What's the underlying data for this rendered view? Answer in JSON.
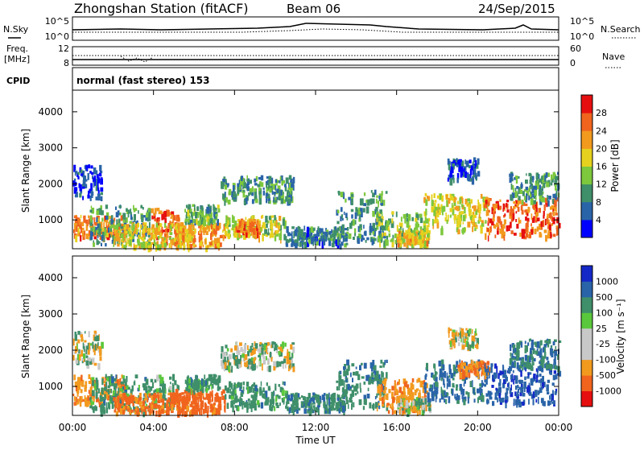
{
  "header": {
    "station": "Zhongshan Station (fitACF)",
    "beam": "Beam 06",
    "date": "24/Sep/2015"
  },
  "noise_panel": {
    "left_label": "N.Sky",
    "left_ticks": [
      "10^5",
      "10^0"
    ],
    "right_label": "N.Search",
    "right_ticks": [
      "10^5",
      "10^0"
    ]
  },
  "freq_panel": {
    "left_label_1": "Freq.",
    "left_label_2": "[MHz]",
    "left_ticks": [
      "12",
      "8"
    ],
    "right_label": "Nave",
    "right_ticks": [
      "60",
      "0"
    ]
  },
  "cpid": {
    "label": "CPID",
    "mode_text": "normal (fast stereo) 153"
  },
  "x_axis": {
    "ticks": [
      "00:00",
      "04:00",
      "08:00",
      "12:00",
      "16:00",
      "20:00",
      "00:00"
    ],
    "label": "Time UT"
  },
  "colors": {
    "power_scale": [
      "#0000ff",
      "#2a64a8",
      "#3f8f6a",
      "#7dc83d",
      "#e6d21e",
      "#f29a1e",
      "#f0641e",
      "#e60f0f"
    ],
    "velocity_scale": [
      "#e60f0f",
      "#f0641e",
      "#f29a1e",
      "#c8c8c8",
      "#c8c8c8",
      "#5ac83c",
      "#3f8f6a",
      "#2a64a8",
      "#1428c8"
    ]
  },
  "chart_data": [
    {
      "type": "heatmap",
      "name": "power",
      "ylabel": "Slant Range [km]",
      "xlabel": "Time UT",
      "xlim": [
        0,
        24
      ],
      "ylim": [
        200,
        4600
      ],
      "yticks": [
        "4000",
        "3000",
        "2000",
        "1000"
      ],
      "colorbar_label": "Power [dB]",
      "colorbar_ticks": [
        "28",
        "24",
        "20",
        "16",
        "12",
        "8",
        "4"
      ],
      "colorbar_range": [
        0,
        32
      ],
      "regions": [
        {
          "t0": 0.0,
          "t1": 1.4,
          "r0": 1600,
          "r1": 2500,
          "level": 4
        },
        {
          "t0": 0.0,
          "t1": 2.5,
          "r0": 500,
          "r1": 1100,
          "level": 24
        },
        {
          "t0": 0.8,
          "t1": 3.8,
          "r0": 300,
          "r1": 1400,
          "level": 10
        },
        {
          "t0": 3.8,
          "t1": 5.2,
          "r0": 400,
          "r1": 1300,
          "level": 26
        },
        {
          "t0": 2.0,
          "t1": 6.0,
          "r0": 250,
          "r1": 900,
          "level": 18
        },
        {
          "t0": 5.0,
          "t1": 7.5,
          "r0": 250,
          "r1": 900,
          "level": 22
        },
        {
          "t0": 5.5,
          "t1": 7.2,
          "r0": 900,
          "r1": 1400,
          "level": 12
        },
        {
          "t0": 7.3,
          "t1": 10.9,
          "r0": 1500,
          "r1": 2200,
          "level": 10
        },
        {
          "t0": 7.5,
          "t1": 10.5,
          "r0": 500,
          "r1": 1100,
          "level": 16
        },
        {
          "t0": 8.0,
          "t1": 9.2,
          "r0": 600,
          "r1": 1000,
          "level": 24
        },
        {
          "t0": 10.5,
          "t1": 13.5,
          "r0": 300,
          "r1": 800,
          "level": 8
        },
        {
          "t0": 13.0,
          "t1": 15.5,
          "r0": 400,
          "r1": 1800,
          "level": 10
        },
        {
          "t0": 15.0,
          "t1": 17.5,
          "r0": 300,
          "r1": 1200,
          "level": 14
        },
        {
          "t0": 16.0,
          "t1": 17.6,
          "r0": 300,
          "r1": 700,
          "level": 20
        },
        {
          "t0": 17.3,
          "t1": 20.5,
          "r0": 700,
          "r1": 1700,
          "level": 18
        },
        {
          "t0": 18.5,
          "t1": 20.0,
          "r0": 2100,
          "r1": 2700,
          "level": 6
        },
        {
          "t0": 20.3,
          "t1": 24.0,
          "r0": 500,
          "r1": 1600,
          "level": 26
        },
        {
          "t0": 21.5,
          "t1": 24.0,
          "r0": 1500,
          "r1": 2300,
          "level": 10
        }
      ]
    },
    {
      "type": "heatmap",
      "name": "velocity",
      "ylabel": "Slant Range [km]",
      "xlabel": "Time UT",
      "xlim": [
        0,
        24
      ],
      "ylim": [
        200,
        4600
      ],
      "yticks": [
        "4000",
        "3000",
        "2000",
        "1000"
      ],
      "colorbar_label": "Velocity [m s⁻¹]",
      "colorbar_ticks": [
        "1000",
        "500",
        "100",
        "25",
        "-25",
        "-100",
        "-500",
        "-1000"
      ],
      "colorbar_range": [
        -1200,
        1200
      ],
      "regions": [
        {
          "t0": 0.0,
          "t1": 1.4,
          "r0": 1600,
          "r1": 2500,
          "level": 0
        },
        {
          "t0": 0.0,
          "t1": 2.5,
          "r0": 500,
          "r1": 1300,
          "level": -400
        },
        {
          "t0": 0.8,
          "t1": 3.8,
          "r0": 300,
          "r1": 1300,
          "level": 300
        },
        {
          "t0": 3.8,
          "t1": 5.2,
          "r0": 400,
          "r1": 1300,
          "level": 250
        },
        {
          "t0": 2.0,
          "t1": 6.0,
          "r0": 250,
          "r1": 800,
          "level": -600
        },
        {
          "t0": 5.0,
          "t1": 7.5,
          "r0": 250,
          "r1": 900,
          "level": -700
        },
        {
          "t0": 5.5,
          "t1": 7.2,
          "r0": 900,
          "r1": 1300,
          "level": 300
        },
        {
          "t0": 7.3,
          "t1": 10.9,
          "r0": 1500,
          "r1": 2200,
          "level": 0
        },
        {
          "t0": 7.5,
          "t1": 10.5,
          "r0": 400,
          "r1": 1100,
          "level": 300
        },
        {
          "t0": 10.5,
          "t1": 13.5,
          "r0": 300,
          "r1": 800,
          "level": 400
        },
        {
          "t0": 13.0,
          "t1": 15.5,
          "r0": 400,
          "r1": 1700,
          "level": 350
        },
        {
          "t0": 15.0,
          "t1": 17.5,
          "r0": 300,
          "r1": 1200,
          "level": -400
        },
        {
          "t0": 16.0,
          "t1": 17.6,
          "r0": 300,
          "r1": 700,
          "level": 0
        },
        {
          "t0": 17.3,
          "t1": 20.5,
          "r0": 600,
          "r1": 1700,
          "level": 600
        },
        {
          "t0": 18.5,
          "t1": 20.0,
          "r0": 2100,
          "r1": 2600,
          "level": 0
        },
        {
          "t0": 19.0,
          "t1": 20.5,
          "r0": 1300,
          "r1": 1700,
          "level": -500
        },
        {
          "t0": 20.3,
          "t1": 24.0,
          "r0": 500,
          "r1": 1600,
          "level": 900
        },
        {
          "t0": 21.5,
          "t1": 24.0,
          "r0": 1500,
          "r1": 2300,
          "level": 500
        }
      ]
    }
  ]
}
